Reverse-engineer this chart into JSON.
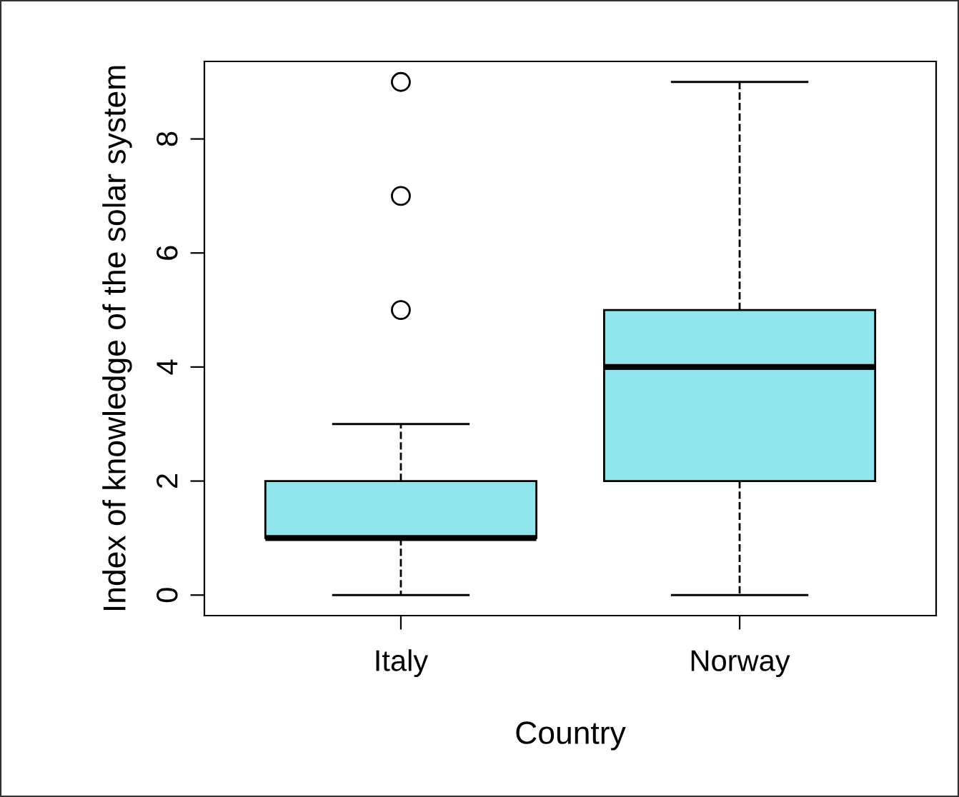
{
  "chart_data": {
    "type": "box",
    "xlabel": "Country",
    "ylabel": "Index of knowledge of the solar system",
    "categories": [
      "Italy",
      "Norway"
    ],
    "boxes": [
      {
        "low": 0,
        "q1": 1,
        "median": 1,
        "q3": 2,
        "high": 3,
        "outliers": [
          5,
          7,
          9
        ]
      },
      {
        "low": 0,
        "q1": 2,
        "median": 4,
        "q3": 5,
        "high": 9
      }
    ],
    "color": "#90e4ec",
    "ylim": [
      -0.36,
      9.36
    ],
    "yticks": [
      0,
      2,
      4,
      6,
      8
    ],
    "grid": false
  }
}
